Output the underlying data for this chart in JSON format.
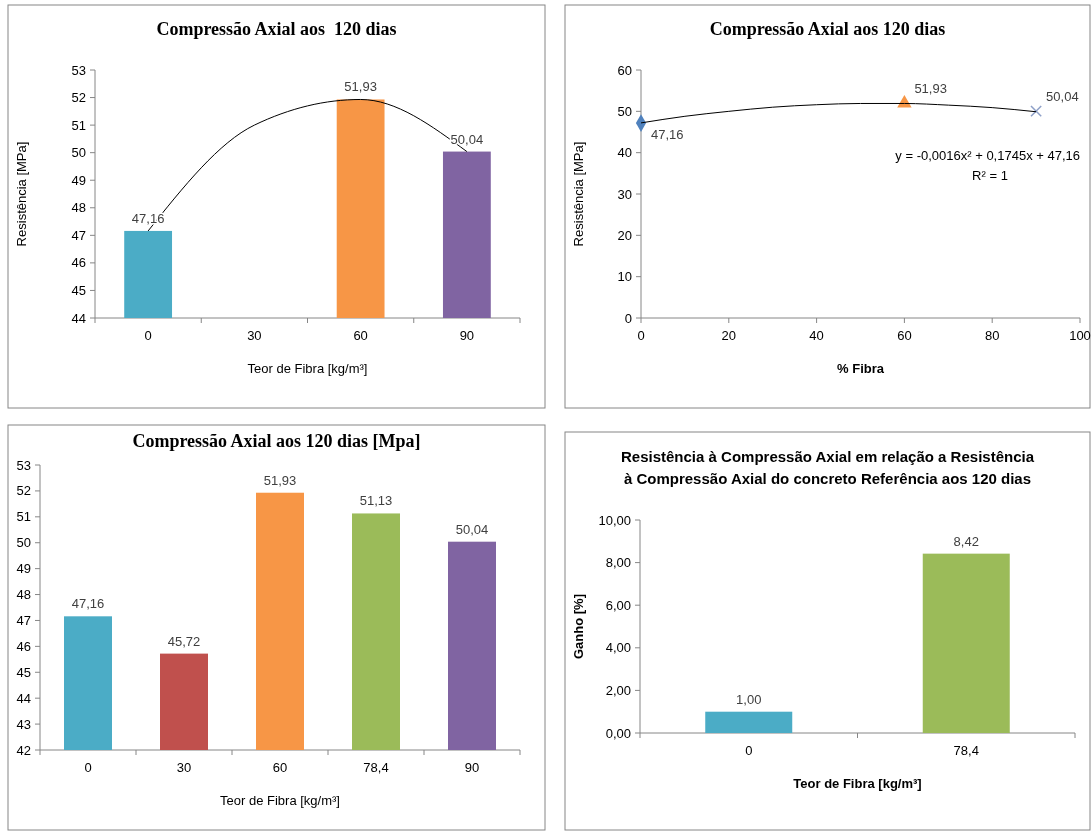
{
  "chart_data": [
    {
      "type": "bar",
      "title": "Compressão Axial aos  120 dias",
      "xlabel": "Teor de Fibra [kg/m³]",
      "ylabel": "Resistência [MPa]",
      "categories": [
        "0",
        "30",
        "60",
        "90"
      ],
      "series": [
        {
          "values": [
            47.16,
            null,
            51.93,
            50.04
          ],
          "colors": [
            "#4bacc6",
            null,
            "#f79646",
            "#8064a2"
          ],
          "value_labels": [
            "47,16",
            null,
            "51,93",
            "50,04"
          ]
        },
        {
          "type": "line",
          "color": "#000000",
          "values": [
            47.16,
            51.0,
            51.93,
            50.04
          ]
        }
      ],
      "ylim": [
        44,
        53
      ],
      "yticks": [
        44,
        45,
        46,
        47,
        48,
        49,
        50,
        51,
        52,
        53
      ]
    },
    {
      "type": "scatter",
      "title": "Compressão Axial aos 120 dias",
      "xlabel": "% Fibra",
      "ylabel": "Resistência [MPa]",
      "series": [
        {
          "x": [
            0
          ],
          "values": [
            47.16
          ],
          "color": "#4f81bd",
          "marker": "diamond",
          "value_labels": [
            "47,16"
          ]
        },
        {
          "x": [
            60
          ],
          "values": [
            51.93
          ],
          "color": "#f79646",
          "marker": "triangle",
          "value_labels": [
            "51,93"
          ]
        },
        {
          "x": [
            90
          ],
          "values": [
            50.04
          ],
          "color": "#8ea0c8",
          "marker": "cross",
          "value_labels": [
            "50,04"
          ]
        },
        {
          "type": "line",
          "color": "#000000",
          "x": [
            0,
            10,
            20,
            30,
            40,
            50,
            60,
            70,
            80,
            90
          ],
          "values": [
            47.2,
            48.8,
            50.0,
            51.0,
            51.6,
            51.9,
            51.9,
            51.5,
            50.9,
            49.9
          ]
        }
      ],
      "annotations": [
        "y = -0,0016x² + 0,1745x + 47,16",
        "R² = 1"
      ],
      "xlim": [
        0,
        100
      ],
      "xticks": [
        0,
        20,
        40,
        60,
        80,
        100
      ],
      "ylim": [
        0,
        60
      ],
      "yticks": [
        0,
        10,
        20,
        30,
        40,
        50,
        60
      ]
    },
    {
      "type": "bar",
      "title": "Compressão Axial aos 120 dias [Mpa]",
      "xlabel": "Teor de Fibra [kg/m³]",
      "categories": [
        "0",
        "30",
        "60",
        "78,4",
        "90"
      ],
      "series": [
        {
          "values": [
            47.16,
            45.72,
            51.93,
            51.13,
            50.04
          ],
          "colors": [
            "#4bacc6",
            "#c0504d",
            "#f79646",
            "#9bbb59",
            "#8064a2"
          ],
          "value_labels": [
            "47,16",
            "45,72",
            "51,93",
            "51,13",
            "50,04"
          ]
        }
      ],
      "ylim": [
        42,
        53
      ],
      "yticks": [
        42,
        43,
        44,
        45,
        46,
        47,
        48,
        49,
        50,
        51,
        52,
        53
      ]
    },
    {
      "type": "bar",
      "title": "Resistência à Compressão Axial em relação a Resistência à Compressão Axial do concreto Referência aos 120 dias",
      "xlabel": "Teor  de Fibra [kg/m³]",
      "ylabel": "Ganho [%]",
      "categories": [
        "0",
        "78,4"
      ],
      "series": [
        {
          "values": [
            1.0,
            8.42
          ],
          "colors": [
            "#4bacc6",
            "#9bbb59"
          ],
          "value_labels": [
            "1,00",
            "8,42"
          ]
        }
      ],
      "ylim": [
        0,
        10
      ],
      "yticks": [
        {
          "value": 0,
          "label": "0,00"
        },
        {
          "value": 2,
          "label": "2,00"
        },
        {
          "value": 4,
          "label": "4,00"
        },
        {
          "value": 6,
          "label": "6,00"
        },
        {
          "value": 8,
          "label": "8,00"
        },
        {
          "value": 10,
          "label": "10,00"
        }
      ]
    }
  ]
}
